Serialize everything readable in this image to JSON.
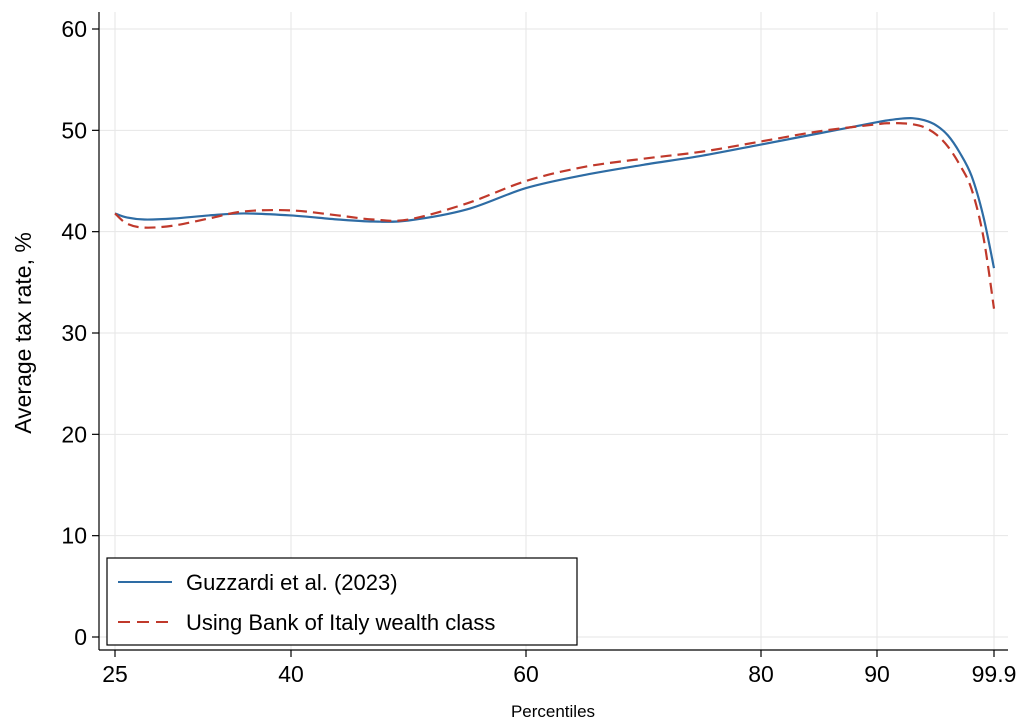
{
  "chart_data": {
    "type": "line",
    "xlabel": "Percentiles",
    "ylabel": "Average tax rate, %",
    "xticks": [
      "25",
      "40",
      "60",
      "80",
      "90",
      "99.9"
    ],
    "yticks": [
      0,
      10,
      20,
      30,
      40,
      50,
      60
    ],
    "ylim": [
      -1,
      61.5
    ],
    "grid": true,
    "legend_position": "bottom-left",
    "series": [
      {
        "name": "Guzzardi et al. (2023)",
        "color": "#2e6ca4",
        "style": "solid",
        "x": [
          25,
          26,
          27.5,
          30,
          33,
          36,
          40,
          44,
          47,
          50,
          55,
          60,
          65,
          70,
          75,
          80,
          85,
          90,
          91,
          92,
          93,
          94,
          95,
          96,
          97,
          98,
          99,
          99.9
        ],
        "y": [
          41.8,
          41.4,
          41.2,
          41.3,
          41.6,
          41.8,
          41.6,
          41.2,
          41.0,
          41.1,
          42.2,
          44.3,
          45.6,
          46.6,
          47.5,
          48.6,
          49.7,
          50.8,
          51.0,
          51.15,
          51.2,
          51.0,
          50.5,
          49.5,
          47.8,
          45.5,
          41.5,
          36.4
        ]
      },
      {
        "name": "Using Bank of Italy wealth class",
        "color": "#c0392b",
        "style": "dashed",
        "x": [
          25,
          26,
          27.5,
          30,
          33,
          36,
          40,
          44,
          47,
          50,
          55,
          60,
          65,
          70,
          75,
          80,
          85,
          90,
          91,
          92,
          93,
          94,
          95,
          96,
          97,
          98,
          99,
          99.9
        ],
        "y": [
          41.8,
          40.8,
          40.4,
          40.6,
          41.3,
          42.0,
          42.1,
          41.6,
          41.2,
          41.2,
          42.8,
          45.0,
          46.4,
          47.2,
          47.9,
          48.9,
          49.9,
          50.6,
          50.7,
          50.7,
          50.6,
          50.3,
          49.6,
          48.4,
          46.6,
          44.2,
          39.5,
          32.4
        ]
      }
    ]
  }
}
